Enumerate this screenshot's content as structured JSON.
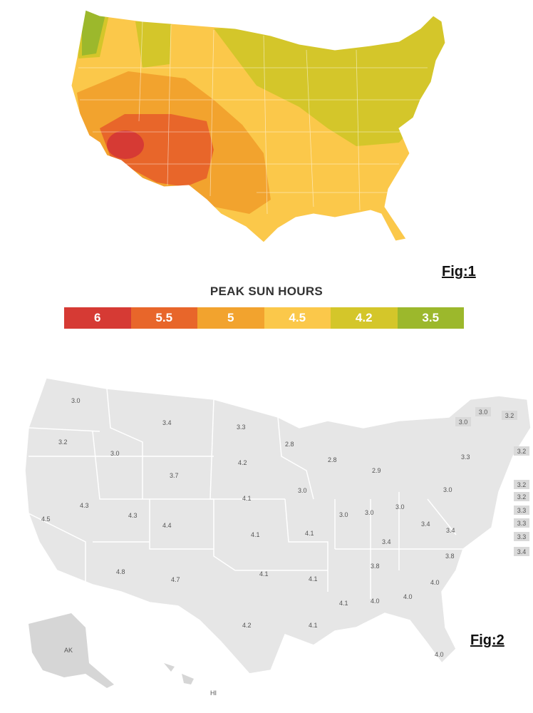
{
  "fig1": {
    "label": "Fig:1",
    "legend_title": "PEAK SUN HOURS",
    "legend": [
      {
        "label": "6",
        "color": "#d63a34"
      },
      {
        "label": "5.5",
        "color": "#e8662a"
      },
      {
        "label": "5",
        "color": "#f2a32e"
      },
      {
        "label": "4.5",
        "color": "#fbc84a"
      },
      {
        "label": "4.2",
        "color": "#d4c62a"
      },
      {
        "label": "3.5",
        "color": "#9cb82c"
      }
    ]
  },
  "fig2": {
    "label": "Fig:2",
    "state_values": [
      {
        "text": "3.0"
      },
      {
        "text": "3.2"
      },
      {
        "text": "3.0"
      },
      {
        "text": "3.4"
      },
      {
        "text": "3.3"
      },
      {
        "text": "2.8"
      },
      {
        "text": "4.2"
      },
      {
        "text": "3.7"
      },
      {
        "text": "2.8"
      },
      {
        "text": "2.9"
      },
      {
        "text": "4.5"
      },
      {
        "text": "4.3"
      },
      {
        "text": "4.3"
      },
      {
        "text": "4.4"
      },
      {
        "text": "4.1"
      },
      {
        "text": "3.0"
      },
      {
        "text": "3.0"
      },
      {
        "text": "3.0"
      },
      {
        "text": "3.0"
      },
      {
        "text": "3.0"
      },
      {
        "text": "4.1"
      },
      {
        "text": "4.1"
      },
      {
        "text": "3.4"
      },
      {
        "text": "3.4"
      },
      {
        "text": "3.4"
      },
      {
        "text": "4.8"
      },
      {
        "text": "4.7"
      },
      {
        "text": "4.1"
      },
      {
        "text": "4.1"
      },
      {
        "text": "3.8"
      },
      {
        "text": "3.8"
      },
      {
        "text": "4.0"
      },
      {
        "text": "4.0"
      },
      {
        "text": "4.1"
      },
      {
        "text": "4.0"
      },
      {
        "text": "4.2"
      },
      {
        "text": "4.1"
      },
      {
        "text": "4.0"
      },
      {
        "text": "3.3"
      }
    ],
    "northeast_boxes": [
      {
        "text": "3.0"
      },
      {
        "text": "3.0"
      },
      {
        "text": "3.2"
      },
      {
        "text": "3.2"
      },
      {
        "text": "3.2"
      },
      {
        "text": "3.2"
      },
      {
        "text": "3.3"
      },
      {
        "text": "3.3"
      },
      {
        "text": "3.3"
      },
      {
        "text": "3.4"
      }
    ],
    "ak_label": "AK",
    "hi_label": "HI"
  }
}
